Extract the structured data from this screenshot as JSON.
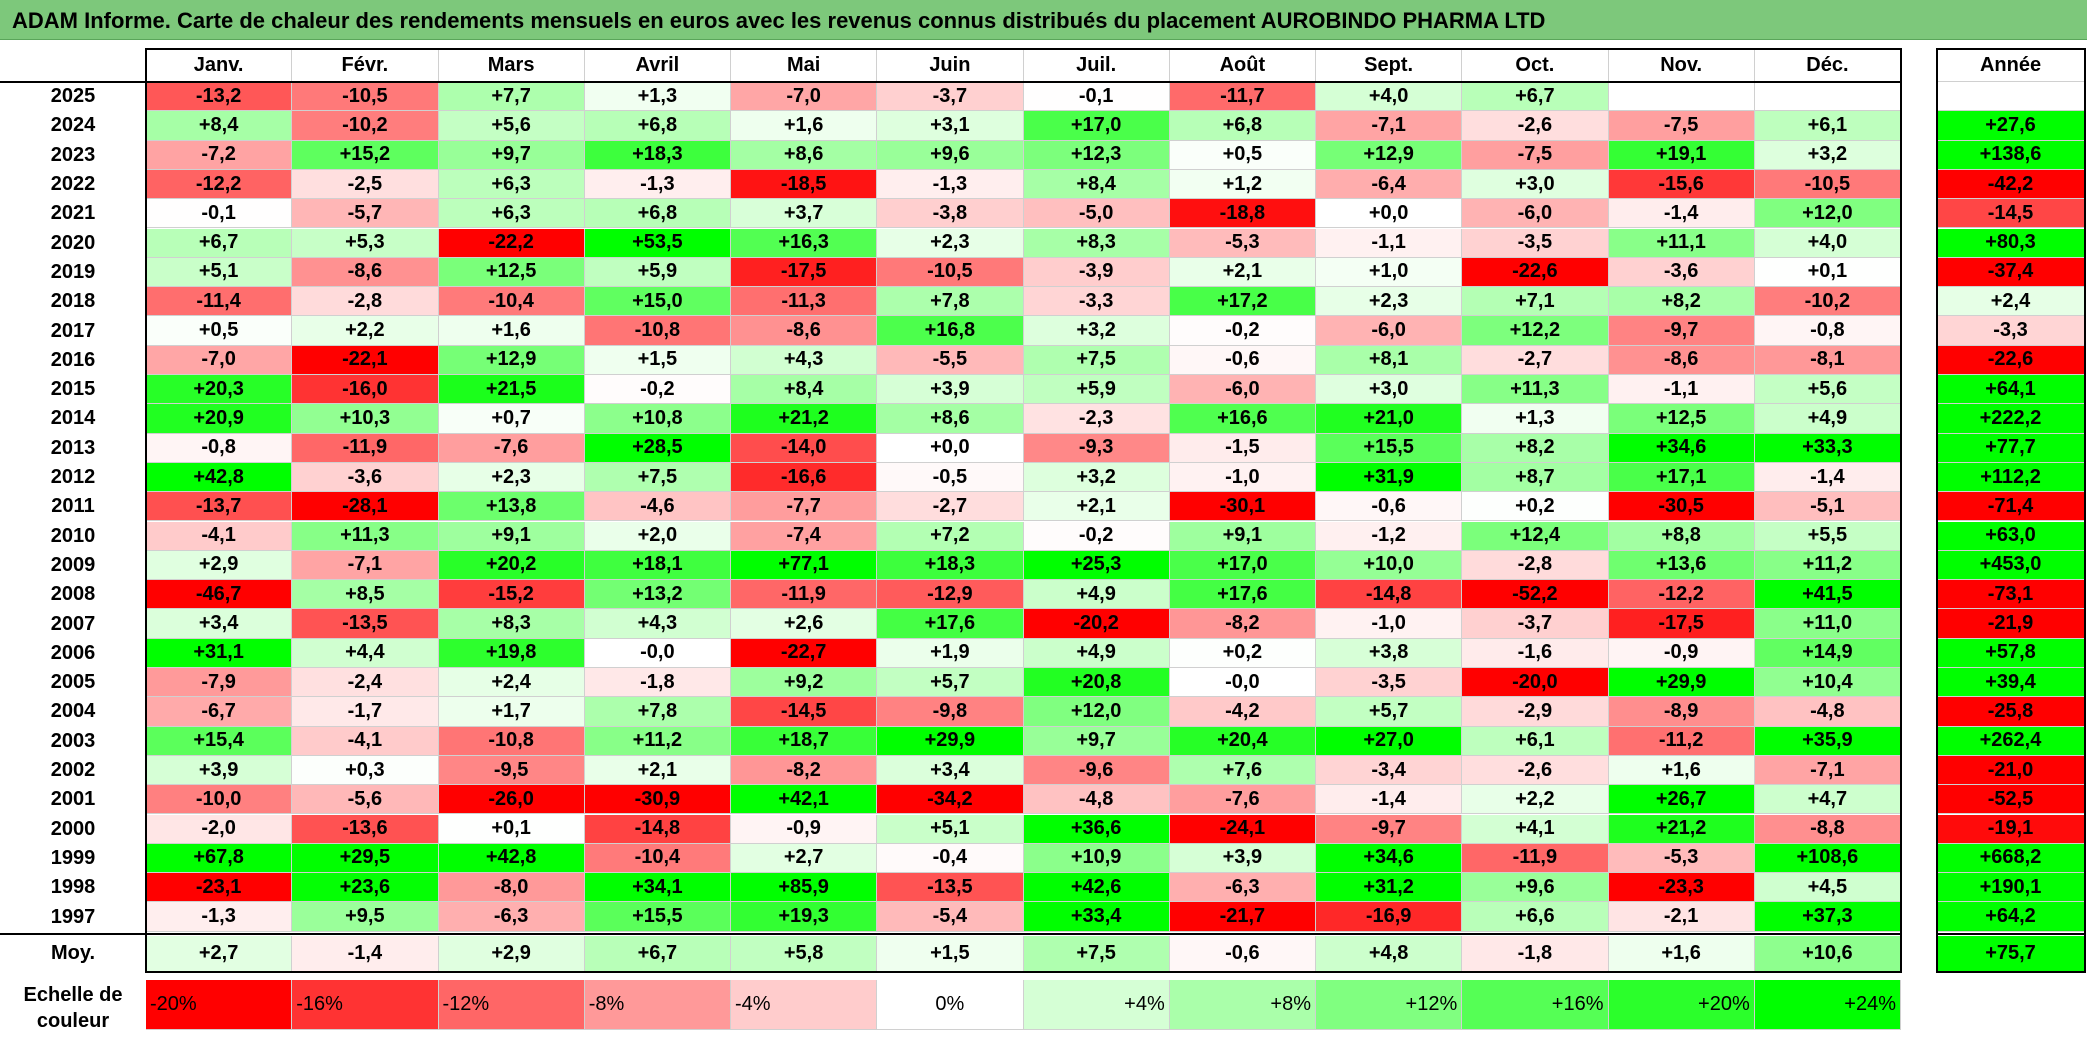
{
  "title": "ADAM Informe. Carte de chaleur des rendements mensuels en euros avec les revenus connus distribués du placement AUROBINDO PHARMA LTD",
  "colors": {
    "title_bg": "#7DC87B",
    "neg_max": "#FF0000",
    "zero": "#FFFFFF",
    "pos_max": "#00FF00"
  },
  "chart_data": {
    "type": "heatmap",
    "months": [
      "Janv.",
      "Févr.",
      "Mars",
      "Avril",
      "Mai",
      "Juin",
      "Juil.",
      "Août",
      "Sept.",
      "Oct.",
      "Nov.",
      "Déc."
    ],
    "year_header": "Année",
    "rows": [
      {
        "year": "2025",
        "m": [
          "-13,2",
          "-10,5",
          "+7,7",
          "+1,3",
          "-7,0",
          "-3,7",
          "-0,1",
          "-11,7",
          "+4,0",
          "+6,7",
          "",
          ""
        ],
        "y": ""
      },
      {
        "year": "2024",
        "m": [
          "+8,4",
          "-10,2",
          "+5,6",
          "+6,8",
          "+1,6",
          "+3,1",
          "+17,0",
          "+6,8",
          "-7,1",
          "-2,6",
          "-7,5",
          "+6,1"
        ],
        "y": "+27,6"
      },
      {
        "year": "2023",
        "m": [
          "-7,2",
          "+15,2",
          "+9,7",
          "+18,3",
          "+8,6",
          "+9,6",
          "+12,3",
          "+0,5",
          "+12,9",
          "-7,5",
          "+19,1",
          "+3,2"
        ],
        "y": "+138,6"
      },
      {
        "year": "2022",
        "m": [
          "-12,2",
          "-2,5",
          "+6,3",
          "-1,3",
          "-18,5",
          "-1,3",
          "+8,4",
          "+1,2",
          "-6,4",
          "+3,0",
          "-15,6",
          "-10,5"
        ],
        "y": "-42,2"
      },
      {
        "year": "2021",
        "m": [
          "-0,1",
          "-5,7",
          "+6,3",
          "+6,8",
          "+3,7",
          "-3,8",
          "-5,0",
          "-18,8",
          "+0,0",
          "-6,0",
          "-1,4",
          "+12,0"
        ],
        "y": "-14,5"
      },
      {
        "year": "2020",
        "m": [
          "+6,7",
          "+5,3",
          "-22,2",
          "+53,5",
          "+16,3",
          "+2,3",
          "+8,3",
          "-5,3",
          "-1,1",
          "-3,5",
          "+11,1",
          "+4,0"
        ],
        "y": "+80,3"
      },
      {
        "year": "2019",
        "m": [
          "+5,1",
          "-8,6",
          "+12,5",
          "+5,9",
          "-17,5",
          "-10,5",
          "-3,9",
          "+2,1",
          "+1,0",
          "-22,6",
          "-3,6",
          "+0,1"
        ],
        "y": "-37,4"
      },
      {
        "year": "2018",
        "m": [
          "-11,4",
          "-2,8",
          "-10,4",
          "+15,0",
          "-11,3",
          "+7,8",
          "-3,3",
          "+17,2",
          "+2,3",
          "+7,1",
          "+8,2",
          "-10,2"
        ],
        "y": "+2,4"
      },
      {
        "year": "2017",
        "m": [
          "+0,5",
          "+2,2",
          "+1,6",
          "-10,8",
          "-8,6",
          "+16,8",
          "+3,2",
          "-0,2",
          "-6,0",
          "+12,2",
          "-9,7",
          "-0,8"
        ],
        "y": "-3,3"
      },
      {
        "year": "2016",
        "m": [
          "-7,0",
          "-22,1",
          "+12,9",
          "+1,5",
          "+4,3",
          "-5,5",
          "+7,5",
          "-0,6",
          "+8,1",
          "-2,7",
          "-8,6",
          "-8,1"
        ],
        "y": "-22,6"
      },
      {
        "year": "2015",
        "m": [
          "+20,3",
          "-16,0",
          "+21,5",
          "-0,2",
          "+8,4",
          "+3,9",
          "+5,9",
          "-6,0",
          "+3,0",
          "+11,3",
          "-1,1",
          "+5,6"
        ],
        "y": "+64,1"
      },
      {
        "year": "2014",
        "m": [
          "+20,9",
          "+10,3",
          "+0,7",
          "+10,8",
          "+21,2",
          "+8,6",
          "-2,3",
          "+16,6",
          "+21,0",
          "+1,3",
          "+12,5",
          "+4,9"
        ],
        "y": "+222,2"
      },
      {
        "year": "2013",
        "m": [
          "-0,8",
          "-11,9",
          "-7,6",
          "+28,5",
          "-14,0",
          "+0,0",
          "-9,3",
          "-1,5",
          "+15,5",
          "+8,2",
          "+34,6",
          "+33,3"
        ],
        "y": "+77,7"
      },
      {
        "year": "2012",
        "m": [
          "+42,8",
          "-3,6",
          "+2,3",
          "+7,5",
          "-16,6",
          "-0,5",
          "+3,2",
          "-1,0",
          "+31,9",
          "+8,7",
          "+17,1",
          "-1,4"
        ],
        "y": "+112,2"
      },
      {
        "year": "2011",
        "m": [
          "-13,7",
          "-28,1",
          "+13,8",
          "-4,6",
          "-7,7",
          "-2,7",
          "+2,1",
          "-30,1",
          "-0,6",
          "+0,2",
          "-30,5",
          "-5,1"
        ],
        "y": "-71,4"
      },
      {
        "year": "2010",
        "m": [
          "-4,1",
          "+11,3",
          "+9,1",
          "+2,0",
          "-7,4",
          "+7,2",
          "-0,2",
          "+9,1",
          "-1,2",
          "+12,4",
          "+8,8",
          "+5,5"
        ],
        "y": "+63,0"
      },
      {
        "year": "2009",
        "m": [
          "+2,9",
          "-7,1",
          "+20,2",
          "+18,1",
          "+77,1",
          "+18,3",
          "+25,3",
          "+17,0",
          "+10,0",
          "-2,8",
          "+13,6",
          "+11,2"
        ],
        "y": "+453,0"
      },
      {
        "year": "2008",
        "m": [
          "-46,7",
          "+8,5",
          "-15,2",
          "+13,2",
          "-11,9",
          "-12,9",
          "+4,9",
          "+17,6",
          "-14,8",
          "-52,2",
          "-12,2",
          "+41,5"
        ],
        "y": "-73,1"
      },
      {
        "year": "2007",
        "m": [
          "+3,4",
          "-13,5",
          "+8,3",
          "+4,3",
          "+2,6",
          "+17,6",
          "-20,2",
          "-8,2",
          "-1,0",
          "-3,7",
          "-17,5",
          "+11,0"
        ],
        "y": "-21,9"
      },
      {
        "year": "2006",
        "m": [
          "+31,1",
          "+4,4",
          "+19,8",
          "-0,0",
          "-22,7",
          "+1,9",
          "+4,9",
          "+0,2",
          "+3,8",
          "-1,6",
          "-0,9",
          "+14,9"
        ],
        "y": "+57,8"
      },
      {
        "year": "2005",
        "m": [
          "-7,9",
          "-2,4",
          "+2,4",
          "-1,8",
          "+9,2",
          "+5,7",
          "+20,8",
          "-0,0",
          "-3,5",
          "-20,0",
          "+29,9",
          "+10,4"
        ],
        "y": "+39,4"
      },
      {
        "year": "2004",
        "m": [
          "-6,7",
          "-1,7",
          "+1,7",
          "+7,8",
          "-14,5",
          "-9,8",
          "+12,0",
          "-4,2",
          "+5,7",
          "-2,9",
          "-8,9",
          "-4,8"
        ],
        "y": "-25,8"
      },
      {
        "year": "2003",
        "m": [
          "+15,4",
          "-4,1",
          "-10,8",
          "+11,2",
          "+18,7",
          "+29,9",
          "+9,7",
          "+20,4",
          "+27,0",
          "+6,1",
          "-11,2",
          "+35,9"
        ],
        "y": "+262,4"
      },
      {
        "year": "2002",
        "m": [
          "+3,9",
          "+0,3",
          "-9,5",
          "+2,1",
          "-8,2",
          "+3,4",
          "-9,6",
          "+7,6",
          "-3,4",
          "-2,6",
          "+1,6",
          "-7,1"
        ],
        "y": "-21,0"
      },
      {
        "year": "2001",
        "m": [
          "-10,0",
          "-5,6",
          "-26,0",
          "-30,9",
          "+42,1",
          "-34,2",
          "-4,8",
          "-7,6",
          "-1,4",
          "+2,2",
          "+26,7",
          "+4,7"
        ],
        "y": "-52,5"
      },
      {
        "year": "2000",
        "m": [
          "-2,0",
          "-13,6",
          "+0,1",
          "-14,8",
          "-0,9",
          "+5,1",
          "+36,6",
          "-24,1",
          "-9,7",
          "+4,1",
          "+21,2",
          "-8,8"
        ],
        "y": "-19,1"
      },
      {
        "year": "1999",
        "m": [
          "+67,8",
          "+29,5",
          "+42,8",
          "-10,4",
          "+2,7",
          "-0,4",
          "+10,9",
          "+3,9",
          "+34,6",
          "-11,9",
          "-5,3",
          "+108,6"
        ],
        "y": "+668,2"
      },
      {
        "year": "1998",
        "m": [
          "-23,1",
          "+23,6",
          "-8,0",
          "+34,1",
          "+85,9",
          "-13,5",
          "+42,6",
          "-6,3",
          "+31,2",
          "+9,6",
          "-23,3",
          "+4,5"
        ],
        "y": "+190,1"
      },
      {
        "year": "1997",
        "m": [
          "-1,3",
          "+9,5",
          "-6,3",
          "+15,5",
          "+19,3",
          "-5,4",
          "+33,4",
          "-21,7",
          "-16,9",
          "+6,6",
          "-2,1",
          "+37,3"
        ],
        "y": "+64,2"
      }
    ],
    "average": {
      "label": "Moy.",
      "m": [
        "+2,7",
        "-1,4",
        "+2,9",
        "+6,7",
        "+5,8",
        "+1,5",
        "+7,5",
        "-0,6",
        "+4,8",
        "-1,8",
        "+1,6",
        "+10,6"
      ],
      "y": "+75,7"
    },
    "scale_label": "Echelle de couleur",
    "scale": [
      {
        "label": "-20%",
        "v": -20
      },
      {
        "label": "-16%",
        "v": -16
      },
      {
        "label": "-12%",
        "v": -12
      },
      {
        "label": "-8%",
        "v": -8
      },
      {
        "label": "-4%",
        "v": -4
      },
      {
        "label": "0%",
        "v": 0
      },
      {
        "label": "+4%",
        "v": 4
      },
      {
        "label": "+8%",
        "v": 8
      },
      {
        "label": "+12%",
        "v": 12
      },
      {
        "label": "+16%",
        "v": 16
      },
      {
        "label": "+20%",
        "v": 20
      },
      {
        "label": "+24%",
        "v": 24
      }
    ]
  }
}
